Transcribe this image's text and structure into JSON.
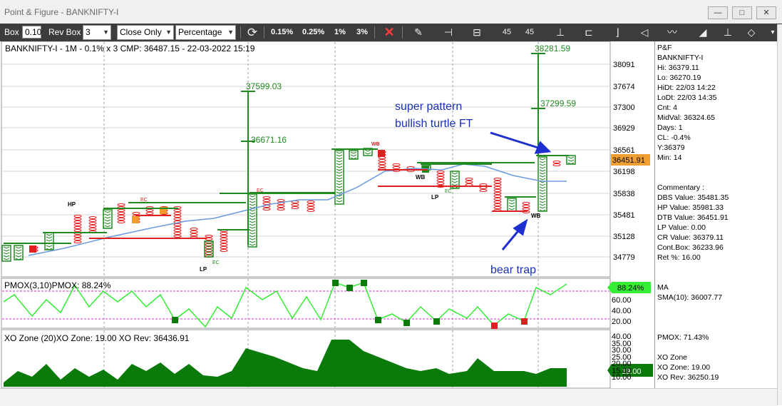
{
  "window": {
    "title": "Point & Figure - BANKNIFTY-I",
    "minimize_label": "—",
    "maximize_label": "□",
    "close_label": "✕"
  },
  "toolbar": {
    "box_label": "Box",
    "box_value": "0.10",
    "revbox_label": "Rev Box",
    "revbox_value": "3",
    "mode_value": "Close Only",
    "scale_value": "Percentage",
    "pct_buttons": [
      "0.15%",
      "0.25%",
      "1%",
      "3%"
    ],
    "icons": [
      "refresh-icon",
      "close-x-icon",
      "edit-icon",
      "pin-icon",
      "flat-line-icon",
      "rotate-left-45-icon",
      "rotate-right-45-icon",
      "vertical-tool-icon",
      "bracket-left-icon",
      "bracket-right-icon",
      "megaphone-icon",
      "indicator-icon",
      "triangle-icon",
      "up-arrow-icon",
      "diamond-icon"
    ],
    "rot_left": "45",
    "rot_right": "45"
  },
  "chart": {
    "header": "BANKNIFTY-I - 1M - 0.1% x 3 CMP: 36487.15 - 22-03-2022 15:19",
    "y_ticks": [
      "38091",
      "37674",
      "37300",
      "36929",
      "36561",
      "36198",
      "35838",
      "35481",
      "35128",
      "34779"
    ],
    "current_price": "36451.91",
    "labels": {
      "target1": "37599.03",
      "target2": "36671.16",
      "target3": "38281.59",
      "target4": "37299.59",
      "hp": "HP",
      "lp1": "LP",
      "lp2": "LP",
      "ec1": "EC",
      "ec2": "EC",
      "ec3": "EC",
      "ec4": "EC",
      "wb1": "WB",
      "wb2": "WB",
      "wb3": "WB"
    },
    "colors": {
      "x": "#1f8a1f",
      "o": "#e02020",
      "ma": "#6699dd",
      "dbs": "#e02020",
      "grid": "#b0b0b0"
    }
  },
  "annotations": {
    "pattern_line1": "super pattern",
    "pattern_line2": "bullish turtle FT",
    "bear_trap": "bear trap"
  },
  "pmox": {
    "header": "PMOX(3,10)PMOX: 88.24%",
    "value_badge": "88.24%",
    "y_ticks": [
      "60.00",
      "40.00",
      "20.00"
    ]
  },
  "xozone": {
    "header": "XO Zone (20)XO Zone: 19.00 XO Rev: 36436.91",
    "value_badge": "19.00",
    "y_ticks": [
      "40.00",
      "35.00",
      "30.00",
      "25.00",
      "20.00",
      "15.00",
      "10.00"
    ]
  },
  "side": {
    "lines": [
      "P&F",
      "BANKNIFTY-I",
      "Hi: 36379.11",
      "Lo: 36270.19",
      "HiDt: 22/03 14:22",
      "LoDt: 22/03 14:35",
      "Cnt: 4",
      "MidVal: 36324.65",
      "Days: 1",
      "CL: -0.4%",
      "Y:36379",
      "Min: 14"
    ],
    "commentary": [
      "Commentary :",
      "DBS Value:  35481.35",
      "HP Value: 35981.33",
      "DTB Value: 36451.91",
      "LP Value: 0.00",
      "CR Value: 36379.11",
      "Cont.Box: 36233.96",
      "Ret %: 16.00"
    ],
    "ma": [
      "MA",
      "SMA(10): 36007.77"
    ],
    "pmox": "PMOX: 71.43%",
    "xo": [
      "XO Zone",
      "XO Zone: 19.00",
      "XO Rev: 36250.19"
    ]
  }
}
